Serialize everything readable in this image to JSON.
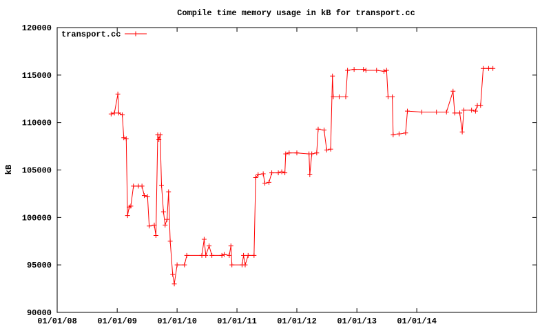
{
  "chart_data": {
    "type": "line",
    "title": "Compile time memory usage in kB for transport.cc",
    "ylabel": "kB",
    "legend": "upper-left",
    "xlim": [
      "2008-01-01",
      "2016-01-01"
    ],
    "xticks": [
      {
        "value": "2008-01-01",
        "label": "01/01/08"
      },
      {
        "value": "2009-01-01",
        "label": "01/01/09"
      },
      {
        "value": "2010-01-01",
        "label": "01/01/10"
      },
      {
        "value": "2011-01-01",
        "label": "01/01/11"
      },
      {
        "value": "2012-01-01",
        "label": "01/01/12"
      },
      {
        "value": "2013-01-01",
        "label": "01/01/13"
      },
      {
        "value": "2014-01-01",
        "label": "01/01/14"
      }
    ],
    "ylim": [
      90000,
      120000
    ],
    "yticks": [
      90000,
      95000,
      100000,
      105000,
      110000,
      115000,
      120000
    ],
    "x": [
      "2008-11-25",
      "2008-12-15",
      "2009-01-05",
      "2009-01-10",
      "2009-02-01",
      "2009-02-10",
      "2009-02-25",
      "2009-03-05",
      "2009-03-15",
      "2009-03-25",
      "2009-04-10",
      "2009-05-10",
      "2009-06-01",
      "2009-06-15",
      "2009-07-05",
      "2009-07-15",
      "2009-08-15",
      "2009-08-25",
      "2009-09-05",
      "2009-09-12",
      "2009-09-20",
      "2009-09-28",
      "2009-10-10",
      "2009-10-20",
      "2009-11-01",
      "2009-11-10",
      "2009-11-20",
      "2009-12-05",
      "2009-12-15",
      "2010-01-01",
      "2010-02-15",
      "2010-03-01",
      "2010-06-01",
      "2010-06-15",
      "2010-06-25",
      "2010-07-15",
      "2010-08-01",
      "2010-10-01",
      "2010-10-15",
      "2010-11-15",
      "2010-11-25",
      "2010-12-01",
      "2011-02-01",
      "2011-02-10",
      "2011-02-20",
      "2011-03-10",
      "2011-04-15",
      "2011-04-25",
      "2011-05-10",
      "2011-06-10",
      "2011-06-20",
      "2011-07-15",
      "2011-08-01",
      "2011-09-10",
      "2011-10-01",
      "2011-10-20",
      "2011-10-25",
      "2011-11-15",
      "2012-01-01",
      "2012-03-15",
      "2012-03-20",
      "2012-04-01",
      "2012-05-01",
      "2012-05-10",
      "2012-06-15",
      "2012-07-01",
      "2012-07-25",
      "2012-08-05",
      "2012-08-10",
      "2012-09-15",
      "2012-10-25",
      "2012-11-05",
      "2012-12-15",
      "2013-02-10",
      "2013-02-25",
      "2013-05-01",
      "2013-06-15",
      "2013-07-01",
      "2013-07-10",
      "2013-08-05",
      "2013-08-10",
      "2013-09-15",
      "2013-10-25",
      "2013-11-05",
      "2014-02-01",
      "2014-05-01",
      "2014-07-01",
      "2014-08-10",
      "2014-08-20",
      "2014-09-20",
      "2014-10-05",
      "2014-10-15",
      "2014-12-01",
      "2014-12-25",
      "2015-01-05",
      "2015-01-25",
      "2015-02-10",
      "2015-03-15",
      "2015-04-10"
    ],
    "series": [
      {
        "name": "transport.cc",
        "color": "#ff0000",
        "values": [
          110900,
          111000,
          113000,
          111000,
          110800,
          108400,
          108300,
          100200,
          101100,
          101200,
          103300,
          103300,
          103300,
          102300,
          102200,
          99100,
          99200,
          98100,
          108700,
          108200,
          108700,
          103400,
          100600,
          99200,
          99800,
          102700,
          97500,
          94000,
          93000,
          95000,
          95000,
          96000,
          96000,
          97700,
          96000,
          97000,
          96000,
          96000,
          96100,
          96000,
          97000,
          95000,
          95000,
          96000,
          95000,
          96000,
          96000,
          104200,
          104500,
          104600,
          103600,
          103700,
          104700,
          104700,
          104800,
          104700,
          106700,
          106800,
          106800,
          106700,
          104500,
          106700,
          106800,
          109300,
          109200,
          107100,
          107200,
          114900,
          112700,
          112700,
          112700,
          115500,
          115600,
          115600,
          115500,
          115500,
          115400,
          115500,
          112700,
          112700,
          108700,
          108800,
          108900,
          111200,
          111100,
          111100,
          111100,
          113300,
          111000,
          111000,
          109000,
          111300,
          111300,
          111200,
          111800,
          111800,
          115700,
          115700,
          115700
        ]
      }
    ]
  }
}
